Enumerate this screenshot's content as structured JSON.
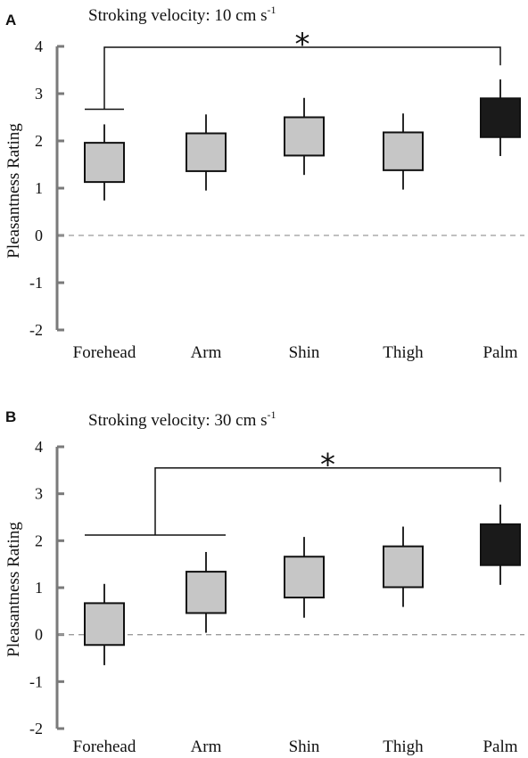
{
  "chart_data": [
    {
      "type": "box",
      "panel": "A",
      "title_main": "Stroking velocity: 10 cm s",
      "title_sup": "-1",
      "ylabel": "Pleasantness Rating",
      "ylim": [
        -2,
        4
      ],
      "yticks": [
        "4",
        "3",
        "2",
        "1",
        "0",
        "-1",
        "-2"
      ],
      "ytick_values": [
        4,
        3,
        2,
        1,
        0,
        -1,
        -2
      ],
      "categories": [
        "Forehead",
        "Arm",
        "Shin",
        "Thigh",
        "Palm"
      ],
      "boxes": [
        {
          "low": 1.13,
          "high": 1.96,
          "whisker_low": 0.74,
          "whisker_high": 2.35,
          "color": "#c6c6c6"
        },
        {
          "low": 1.36,
          "high": 2.16,
          "whisker_low": 0.95,
          "whisker_high": 2.56,
          "color": "#c6c6c6"
        },
        {
          "low": 1.69,
          "high": 2.5,
          "whisker_low": 1.28,
          "whisker_high": 2.91,
          "color": "#c6c6c6"
        },
        {
          "low": 1.38,
          "high": 2.18,
          "whisker_low": 0.97,
          "whisker_high": 2.58,
          "color": "#c6c6c6"
        },
        {
          "low": 2.08,
          "high": 2.9,
          "whisker_low": 1.68,
          "whisker_high": 3.3,
          "color": "#1a1a1a"
        }
      ],
      "significance": {
        "label": "*",
        "from": [
          "Forehead"
        ],
        "to": "Palm",
        "group_level": 2.67,
        "bracket_level": 3.98,
        "drop_level": 3.6
      }
    },
    {
      "type": "box",
      "panel": "B",
      "title_main": "Stroking velocity: 30 cm s",
      "title_sup": "-1",
      "ylabel": "Pleasantness Rating",
      "ylim": [
        -2,
        4
      ],
      "yticks": [
        "4",
        "3",
        "2",
        "1",
        "0",
        "-1",
        "-2"
      ],
      "ytick_values": [
        4,
        3,
        2,
        1,
        0,
        -1,
        -2
      ],
      "categories": [
        "Forehead",
        "Arm",
        "Shin",
        "Thigh",
        "Palm"
      ],
      "boxes": [
        {
          "low": -0.22,
          "high": 0.67,
          "whisker_low": -0.65,
          "whisker_high": 1.08,
          "color": "#c6c6c6"
        },
        {
          "low": 0.46,
          "high": 1.34,
          "whisker_low": 0.04,
          "whisker_high": 1.76,
          "color": "#c6c6c6"
        },
        {
          "low": 0.79,
          "high": 1.66,
          "whisker_low": 0.36,
          "whisker_high": 2.08,
          "color": "#c6c6c6"
        },
        {
          "low": 1.01,
          "high": 1.88,
          "whisker_low": 0.59,
          "whisker_high": 2.3,
          "color": "#c6c6c6"
        },
        {
          "low": 1.48,
          "high": 2.35,
          "whisker_low": 1.06,
          "whisker_high": 2.77,
          "color": "#1a1a1a"
        }
      ],
      "significance": {
        "label": "*",
        "from": [
          "Forehead",
          "Arm"
        ],
        "to": "Palm",
        "group_level": 2.12,
        "bracket_level": 3.55,
        "drop_level": 3.25
      }
    }
  ]
}
